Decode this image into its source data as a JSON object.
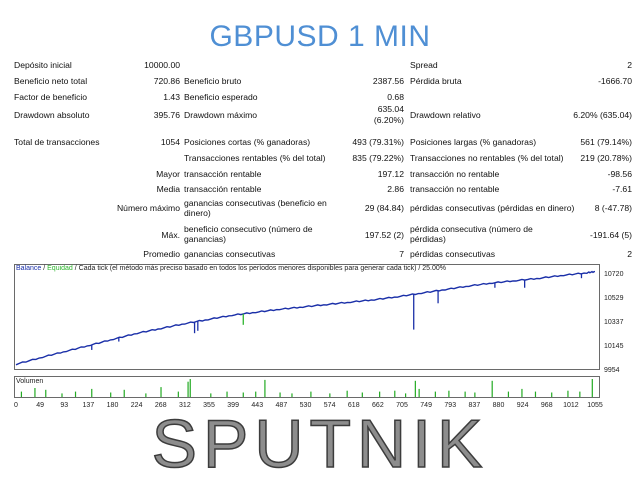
{
  "title": "GBPUSD 1 MIN",
  "brand": "SPUTNIK",
  "stats": {
    "deposit_label": "Depósito inicial",
    "deposit_value": "10000.00",
    "spread_label": "Spread",
    "spread_value": "2",
    "net_profit_label": "Beneficio neto total",
    "net_profit_value": "720.86",
    "gross_profit_label": "Beneficio bruto",
    "gross_profit_value": "2387.56",
    "gross_loss_label": "Pérdida bruta",
    "gross_loss_value": "-1666.70",
    "profit_factor_label": "Factor de beneficio",
    "profit_factor_value": "1.43",
    "expected_payoff_label": "Beneficio esperado",
    "expected_payoff_value": "0.68",
    "abs_dd_label": "Drawdown absoluto",
    "abs_dd_value": "395.76",
    "max_dd_label": "Drawdown máximo",
    "max_dd_value1": "635.04",
    "max_dd_value2": "(6.20%)",
    "rel_dd_label": "Drawdown relativo",
    "rel_dd_value": "6.20% (635.04)",
    "total_trades_label": "Total de transacciones",
    "total_trades_value": "1054",
    "short_label": "Posiciones cortas (% ganadoras)",
    "short_value": "493 (79.31%)",
    "long_label": "Posiciones largas (% ganadoras)",
    "long_value": "561 (79.14%)",
    "profit_trades_label": "Transacciones rentables (% del total)",
    "profit_trades_value": "835 (79.22%)",
    "loss_trades_label": "Transacciones no rentables (% del total)",
    "loss_trades_value": "219 (20.78%)",
    "largest_label": "Mayor",
    "largest_profit_label": "transacción rentable",
    "largest_profit_value": "197.12",
    "largest_loss_label": "transacción no rentable",
    "largest_loss_value": "-98.56",
    "average_label": "Media",
    "average_profit_label": "transacción rentable",
    "average_profit_value": "2.86",
    "average_loss_label": "transacción no rentable",
    "average_loss_value": "-7.61",
    "max_label": "Número máximo",
    "max_cons_wins_label": "ganancias consecutivas (beneficio en dinero)",
    "max_cons_wins_value": "29 (84.84)",
    "max_cons_losses_label": "pérdidas consecutivas (pérdidas en dinero)",
    "max_cons_losses_value": "8 (-47.78)",
    "maximal_label": "Máx.",
    "maximal_cons_profit_label": "beneficio consecutivo (número de ganancias)",
    "maximal_cons_profit_value": "197.52 (2)",
    "maximal_cons_loss_label": "pérdida consecutiva (número de pérdidas)",
    "maximal_cons_loss_value": "-191.64 (5)",
    "avg_label": "Promedio",
    "avg_cons_wins_label": "ganancias consecutivas",
    "avg_cons_wins_value": "7",
    "avg_cons_losses_label": "pérdidas consecutivas",
    "avg_cons_losses_value": "2"
  },
  "legend": {
    "balance": "Balance",
    "sep": " / ",
    "equity": "Equidad",
    "rest": " / Cada tick (el método más preciso basado en todos los períodos menores disponibles para generar cada tick)  /  25.00%"
  },
  "volume_label": "Volumen",
  "colors": {
    "balance": "#1a2fa8",
    "equity": "#2db52d",
    "volume": "#22aa22",
    "title": "#4f8fd4"
  },
  "chart_data": {
    "type": "line",
    "y_ticks": [
      "10720",
      "10529",
      "10337",
      "10145",
      "9954"
    ],
    "x_ticks": [
      "0",
      "49",
      "93",
      "137",
      "180",
      "224",
      "268",
      "312",
      "355",
      "399",
      "443",
      "487",
      "530",
      "574",
      "618",
      "662",
      "705",
      "749",
      "793",
      "837",
      "880",
      "924",
      "968",
      "1012",
      "1055"
    ],
    "ylim": [
      9954,
      10740
    ],
    "xlim": [
      0,
      1070
    ],
    "series": [
      {
        "name": "Balance",
        "x": [
          0,
          49,
          93,
          137,
          180,
          224,
          268,
          312,
          355,
          399,
          443,
          487,
          530,
          574,
          618,
          662,
          705,
          749,
          793,
          837,
          880,
          924,
          968,
          1012,
          1055,
          1070
        ],
        "values": [
          9960,
          10020,
          10070,
          10120,
          10170,
          10220,
          10260,
          10300,
          10335,
          10370,
          10395,
          10420,
          10440,
          10460,
          10480,
          10500,
          10525,
          10555,
          10585,
          10615,
          10640,
          10660,
          10680,
          10705,
          10725,
          10735
        ]
      }
    ],
    "dips": [
      {
        "x": 140,
        "y": 10080
      },
      {
        "x": 190,
        "y": 10150
      },
      {
        "x": 330,
        "y": 10220
      },
      {
        "x": 336,
        "y": 10240
      },
      {
        "x": 420,
        "y": 10290
      },
      {
        "x": 735,
        "y": 10250
      },
      {
        "x": 780,
        "y": 10470
      },
      {
        "x": 885,
        "y": 10600
      },
      {
        "x": 940,
        "y": 10600
      },
      {
        "x": 1045,
        "y": 10680
      }
    ],
    "volume": [
      {
        "x": 10,
        "v": 0.3
      },
      {
        "x": 35,
        "v": 0.5
      },
      {
        "x": 55,
        "v": 0.4
      },
      {
        "x": 85,
        "v": 0.2
      },
      {
        "x": 110,
        "v": 0.3
      },
      {
        "x": 140,
        "v": 0.45
      },
      {
        "x": 175,
        "v": 0.25
      },
      {
        "x": 200,
        "v": 0.4
      },
      {
        "x": 240,
        "v": 0.2
      },
      {
        "x": 268,
        "v": 0.55
      },
      {
        "x": 300,
        "v": 0.3
      },
      {
        "x": 318,
        "v": 0.85
      },
      {
        "x": 322,
        "v": 1.0
      },
      {
        "x": 360,
        "v": 0.2
      },
      {
        "x": 390,
        "v": 0.3
      },
      {
        "x": 420,
        "v": 0.25
      },
      {
        "x": 443,
        "v": 0.3
      },
      {
        "x": 460,
        "v": 0.95
      },
      {
        "x": 488,
        "v": 0.25
      },
      {
        "x": 510,
        "v": 0.2
      },
      {
        "x": 545,
        "v": 0.3
      },
      {
        "x": 580,
        "v": 0.2
      },
      {
        "x": 612,
        "v": 0.35
      },
      {
        "x": 640,
        "v": 0.25
      },
      {
        "x": 672,
        "v": 0.3
      },
      {
        "x": 700,
        "v": 0.35
      },
      {
        "x": 720,
        "v": 0.2
      },
      {
        "x": 738,
        "v": 0.9
      },
      {
        "x": 745,
        "v": 0.45
      },
      {
        "x": 775,
        "v": 0.3
      },
      {
        "x": 800,
        "v": 0.35
      },
      {
        "x": 830,
        "v": 0.3
      },
      {
        "x": 848,
        "v": 0.25
      },
      {
        "x": 880,
        "v": 0.9
      },
      {
        "x": 910,
        "v": 0.3
      },
      {
        "x": 935,
        "v": 0.45
      },
      {
        "x": 960,
        "v": 0.3
      },
      {
        "x": 990,
        "v": 0.25
      },
      {
        "x": 1020,
        "v": 0.35
      },
      {
        "x": 1042,
        "v": 0.3
      },
      {
        "x": 1065,
        "v": 1.0
      }
    ]
  }
}
